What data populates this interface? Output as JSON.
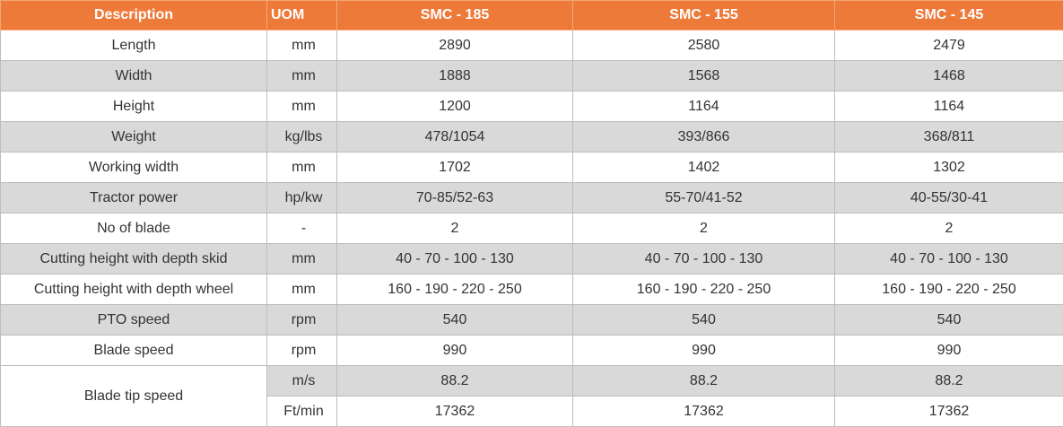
{
  "table": {
    "header": [
      "Description",
      "UOM",
      "SMC - 185",
      "SMC - 155",
      "SMC - 145"
    ],
    "rows": [
      [
        "Length",
        "mm",
        "2890",
        "2580",
        "2479"
      ],
      [
        "Width",
        "mm",
        "1888",
        "1568",
        "1468"
      ],
      [
        "Height",
        "mm",
        "1200",
        "1164",
        "1164"
      ],
      [
        "Weight",
        "kg/lbs",
        "478/1054",
        "393/866",
        "368/811"
      ],
      [
        "Working width",
        "mm",
        "1702",
        "1402",
        "1302"
      ],
      [
        "Tractor power",
        "hp/kw",
        "70-85/52-63",
        "55-70/41-52",
        "40-55/30-41"
      ],
      [
        "No of blade",
        "-",
        "2",
        "2",
        "2"
      ],
      [
        "Cutting height with depth skid",
        "mm",
        "40 - 70 - 100 - 130",
        "40 - 70 - 100 - 130",
        "40 - 70 - 100 - 130"
      ],
      [
        "Cutting height with depth wheel",
        "mm",
        "160 - 190 - 220 - 250",
        "160 - 190 - 220 - 250",
        "160 - 190 - 220 - 250"
      ],
      [
        "PTO speed",
        "rpm",
        "540",
        "540",
        "540"
      ],
      [
        "Blade speed",
        "rpm",
        "990",
        "990",
        "990"
      ],
      {
        "label": "Blade tip speed",
        "units": [
          [
            "m/s",
            "88.2",
            "88.2",
            "88.2"
          ],
          [
            "Ft/min",
            "17362",
            "17362",
            "17362"
          ]
        ]
      }
    ]
  }
}
